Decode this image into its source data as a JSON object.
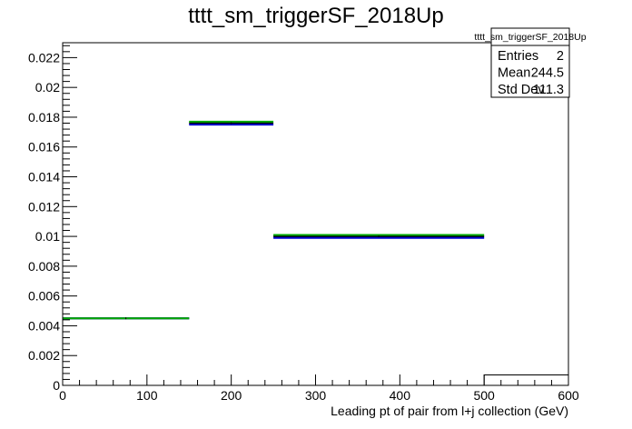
{
  "chart_data": {
    "type": "bar",
    "title": "tttt_sm_triggerSF_2018Up",
    "xlabel": "Leading pt of pair from l+j collection (GeV)",
    "ylabel": "",
    "xlim": [
      0,
      600
    ],
    "ylim": [
      0,
      0.023
    ],
    "grid": false,
    "x_ticks": [
      "0",
      "100",
      "200",
      "300",
      "400",
      "500",
      "600"
    ],
    "y_ticks": [
      "0",
      "0.002",
      "0.004",
      "0.006",
      "0.008",
      "0.01",
      "0.012",
      "0.014",
      "0.016",
      "0.018",
      "0.02",
      "0.022"
    ],
    "bins": [
      {
        "x_low": 0,
        "x_high": 150,
        "values": [
          0.0045,
          0.0045,
          0.0045
        ]
      },
      {
        "x_low": 150,
        "x_high": 250,
        "values": [
          0.0176,
          0.0175,
          0.0177
        ]
      },
      {
        "x_low": 250,
        "x_high": 500,
        "values": [
          0.01,
          0.0099,
          0.0101
        ]
      },
      {
        "x_low": 500,
        "x_high": 600,
        "values": [
          0.0007,
          0.0007,
          0.0007
        ]
      }
    ],
    "series_colors": [
      "#000000",
      "#0000cc",
      "#00aa00"
    ],
    "stats": {
      "title": "tttt_sm_triggerSF_2018Up",
      "rows": [
        {
          "label": "Entries",
          "value": "2"
        },
        {
          "label": "Mean",
          "value": "244.5"
        },
        {
          "label": "Std Dev",
          "value": "111.3"
        }
      ],
      "placement": "top-right"
    }
  }
}
